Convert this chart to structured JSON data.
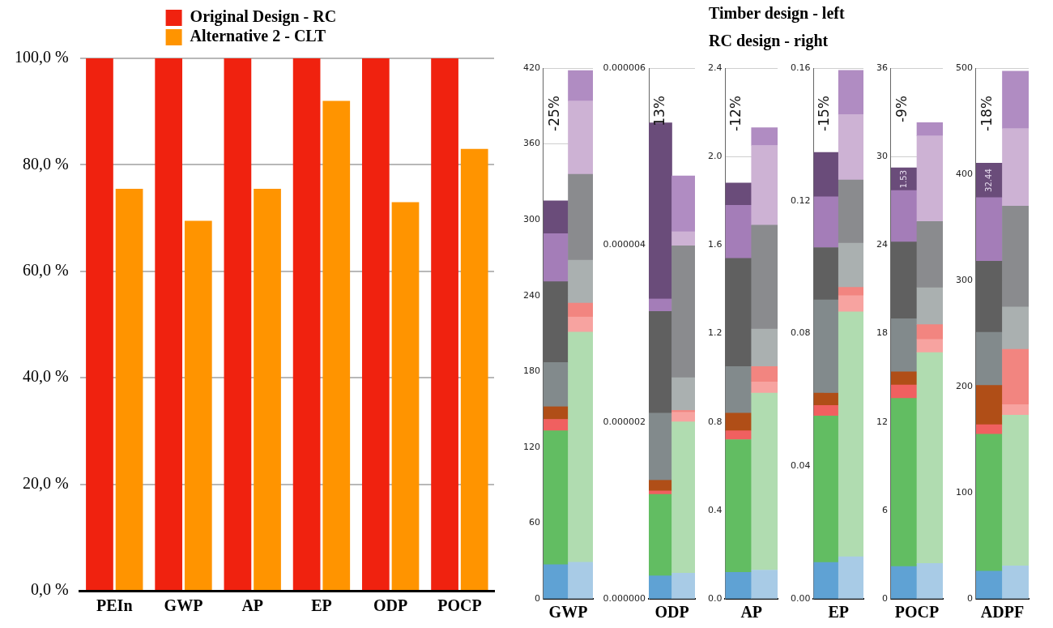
{
  "chart_data": [
    {
      "type": "bar",
      "categories": [
        "PEIn",
        "GWP",
        "AP",
        "EP",
        "ODP",
        "POCP"
      ],
      "ylim": [
        0,
        100
      ],
      "yticks": [
        {
          "value": 0,
          "label": "0,0 %"
        },
        {
          "value": 20,
          "label": "20,0 %"
        },
        {
          "value": 40,
          "label": "40,0 %"
        },
        {
          "value": 60,
          "label": "60,0 %"
        },
        {
          "value": 80,
          "label": "80,0 %"
        },
        {
          "value": 100,
          "label": "100,0 %"
        }
      ],
      "grid": "y",
      "legend": "top",
      "series": [
        {
          "name": "Original Design - RC",
          "color": "#f0220f",
          "values": [
            100,
            100,
            100,
            100,
            100,
            100
          ]
        },
        {
          "name": "Alternative 2 - CLT",
          "color": "#ff9400",
          "values": [
            75.5,
            69.5,
            75.5,
            92,
            73,
            83
          ]
        }
      ]
    },
    {
      "type": "other",
      "title": "Timber design - left",
      "subtitle": "RC design - right"
    },
    {
      "type": "bar",
      "stacked": true,
      "xlabel": "GWP",
      "categories": [
        null,
        null
      ],
      "ylim": [
        0,
        420
      ],
      "yticks": [
        0,
        60,
        120,
        180,
        240,
        300,
        360,
        420
      ],
      "grid": "y",
      "annotations": [
        "-25%"
      ],
      "series": [
        {
          "colors": [
            "#5fa2d4",
            "#a8cbe6"
          ],
          "values": [
            27,
            29
          ]
        },
        {
          "colors": [
            "#62bd62",
            "#b0dcb0"
          ],
          "values": [
            106,
            182
          ]
        },
        {
          "colors": [
            "#f06060",
            "#f7a3a0"
          ],
          "values": [
            9,
            12
          ]
        },
        {
          "colors": [
            "#b04e17",
            "#f28580"
          ],
          "values": [
            10,
            11
          ]
        },
        {
          "colors": [
            "#828a8c",
            "#aab0b0"
          ],
          "values": [
            35,
            34
          ]
        },
        {
          "colors": [
            "#606060",
            "#8a8b8e"
          ],
          "values": [
            64,
            68
          ]
        },
        {
          "colors": [
            "#a47db8",
            "#cdb2d4"
          ],
          "values": [
            38,
            58
          ]
        },
        {
          "colors": [
            "#6a4c7a",
            "#b08cc2"
          ],
          "values": [
            26,
            24
          ]
        }
      ]
    },
    {
      "type": "bar",
      "stacked": true,
      "xlabel": "ODP",
      "categories": [
        null,
        null
      ],
      "ylim": [
        0,
        6e-06
      ],
      "yticks": [
        {
          "value": 0,
          "label": "0.000000"
        },
        {
          "value": 2e-06,
          "label": "0.000002"
        },
        {
          "value": 4e-06,
          "label": "0.000004"
        },
        {
          "value": 6e-06,
          "label": "0.000006"
        }
      ],
      "grid": "y",
      "annotations": [
        "13%"
      ],
      "series": [
        {
          "colors": [
            "#5fa2d4",
            "#a8cbe6"
          ],
          "values": [
            2.6e-07,
            2.9e-07
          ]
        },
        {
          "colors": [
            "#62bd62",
            "#b0dcb0"
          ],
          "values": [
            9.2e-07,
            1.71e-06
          ]
        },
        {
          "colors": [
            "#f06060",
            "#f7a3a0"
          ],
          "values": [
            4e-08,
            1.1e-07
          ]
        },
        {
          "colors": [
            "#b04e17",
            "#f28580"
          ],
          "values": [
            1.2e-07,
            2e-08
          ]
        },
        {
          "colors": [
            "#828a8c",
            "#aab0b0"
          ],
          "values": [
            7.6e-07,
            3.7e-07
          ]
        },
        {
          "colors": [
            "#606060",
            "#8a8b8e"
          ],
          "values": [
            1.15e-06,
            1.49e-06
          ]
        },
        {
          "colors": [
            "#a47db8",
            "#cdb2d4"
          ],
          "values": [
            1.4e-07,
            1.6e-07
          ]
        },
        {
          "colors": [
            "#6a4c7a",
            "#b08cc2"
          ],
          "values": [
            1.99e-06,
            6.3e-07
          ]
        }
      ]
    },
    {
      "type": "bar",
      "stacked": true,
      "xlabel": "AP",
      "categories": [
        null,
        null
      ],
      "ylim": [
        0,
        2.4
      ],
      "yticks": [
        {
          "value": 0,
          "label": "0.0"
        },
        0.4,
        0.8,
        1.2,
        1.6,
        {
          "value": 2,
          "label": "2.0"
        },
        2.4
      ],
      "grid": "y",
      "annotations": [
        "-12%"
      ],
      "series": [
        {
          "colors": [
            "#5fa2d4",
            "#a8cbe6"
          ],
          "values": [
            0.12,
            0.13
          ]
        },
        {
          "colors": [
            "#62bd62",
            "#b0dcb0"
          ],
          "values": [
            0.6,
            0.8
          ]
        },
        {
          "colors": [
            "#f06060",
            "#f7a3a0"
          ],
          "values": [
            0.04,
            0.05
          ]
        },
        {
          "colors": [
            "#b04e17",
            "#f28580"
          ],
          "values": [
            0.08,
            0.07
          ]
        },
        {
          "colors": [
            "#828a8c",
            "#aab0b0"
          ],
          "values": [
            0.21,
            0.17
          ]
        },
        {
          "colors": [
            "#606060",
            "#8a8b8e"
          ],
          "values": [
            0.49,
            0.47
          ]
        },
        {
          "colors": [
            "#a47db8",
            "#cdb2d4"
          ],
          "values": [
            0.24,
            0.36
          ]
        },
        {
          "colors": [
            "#6a4c7a",
            "#b08cc2"
          ],
          "values": [
            0.1,
            0.08
          ]
        }
      ]
    },
    {
      "type": "bar",
      "stacked": true,
      "xlabel": "EP",
      "categories": [
        null,
        null
      ],
      "ylim": [
        0,
        0.16
      ],
      "yticks": [
        {
          "value": 0,
          "label": "0.00"
        },
        0.04,
        0.08,
        0.12,
        0.16
      ],
      "grid": "y",
      "annotations": [
        "-15%"
      ],
      "series": [
        {
          "colors": [
            "#5fa2d4",
            "#a8cbe6"
          ],
          "values": [
            0.011,
            0.0127
          ]
        },
        {
          "colors": [
            "#62bd62",
            "#b0dcb0"
          ],
          "values": [
            0.0441,
            0.0738
          ]
        },
        {
          "colors": [
            "#f06060",
            "#f7a3a0"
          ],
          "values": [
            0.0032,
            0.0049
          ]
        },
        {
          "colors": [
            "#b04e17",
            "#f28580"
          ],
          "values": [
            0.0037,
            0.0025
          ]
        },
        {
          "colors": [
            "#828a8c",
            "#aab0b0"
          ],
          "values": [
            0.0281,
            0.0133
          ]
        },
        {
          "colors": [
            "#606060",
            "#8a8b8e"
          ],
          "values": [
            0.0158,
            0.0191
          ]
        },
        {
          "colors": [
            "#a47db8",
            "#cdb2d4"
          ],
          "values": [
            0.0153,
            0.0197
          ]
        },
        {
          "colors": [
            "#6a4c7a",
            "#b08cc2"
          ],
          "values": [
            0.0134,
            0.0133
          ]
        }
      ]
    },
    {
      "type": "bar",
      "stacked": true,
      "xlabel": "POCP",
      "categories": [
        null,
        null
      ],
      "ylim": [
        0,
        36
      ],
      "yticks": [
        0,
        6,
        12,
        18,
        24,
        30,
        36
      ],
      "grid": "y",
      "annotations": [
        "-9%"
      ],
      "series": [
        {
          "colors": [
            "#5fa2d4",
            "#a8cbe6"
          ],
          "values": [
            2.2,
            2.4
          ]
        },
        {
          "colors": [
            "#62bd62",
            "#b0dcb0"
          ],
          "values": [
            11.4,
            14.3
          ]
        },
        {
          "colors": [
            "#f06060",
            "#f7a3a0"
          ],
          "values": [
            0.9,
            0.9
          ]
        },
        {
          "colors": [
            "#b04e17",
            "#f28580"
          ],
          "values": [
            0.9,
            1
          ]
        },
        {
          "colors": [
            "#828a8c",
            "#aab0b0"
          ],
          "values": [
            3.6,
            2.5
          ]
        },
        {
          "colors": [
            "#606060",
            "#8a8b8e"
          ],
          "values": [
            5.2,
            4.5
          ]
        },
        {
          "colors": [
            "#a47db8",
            "#cdb2d4"
          ],
          "values": [
            3.5,
            5.8
          ]
        },
        {
          "colors": [
            "#6a4c7a",
            "#b08cc2"
          ],
          "values": [
            1.53,
            0.9
          ],
          "value_labels": [
            "1.53",
            null
          ]
        }
      ]
    },
    {
      "type": "bar",
      "stacked": true,
      "xlabel": "ADPF",
      "categories": [
        null,
        null
      ],
      "ylim": [
        0,
        500
      ],
      "yticks": [
        0,
        100,
        200,
        300,
        400,
        500
      ],
      "grid": "y",
      "annotations": [
        "-18%"
      ],
      "series": [
        {
          "colors": [
            "#5fa2d4",
            "#a8cbe6"
          ],
          "values": [
            26,
            31
          ]
        },
        {
          "colors": [
            "#62bd62",
            "#b0dcb0"
          ],
          "values": [
            129,
            142
          ]
        },
        {
          "colors": [
            "#f06060",
            "#f7a3a0"
          ],
          "values": [
            9,
            10
          ]
        },
        {
          "colors": [
            "#b04e17",
            "#f28580"
          ],
          "values": [
            37,
            52
          ]
        },
        {
          "colors": [
            "#828a8c",
            "#aab0b0"
          ],
          "values": [
            50,
            40
          ]
        },
        {
          "colors": [
            "#606060",
            "#8a8b8e"
          ],
          "values": [
            67,
            95
          ]
        },
        {
          "colors": [
            "#a47db8",
            "#cdb2d4"
          ],
          "values": [
            60,
            73
          ]
        },
        {
          "colors": [
            "#6a4c7a",
            "#b08cc2"
          ],
          "values": [
            32.44,
            54
          ],
          "value_labels": [
            "32.44",
            null
          ]
        }
      ]
    }
  ]
}
